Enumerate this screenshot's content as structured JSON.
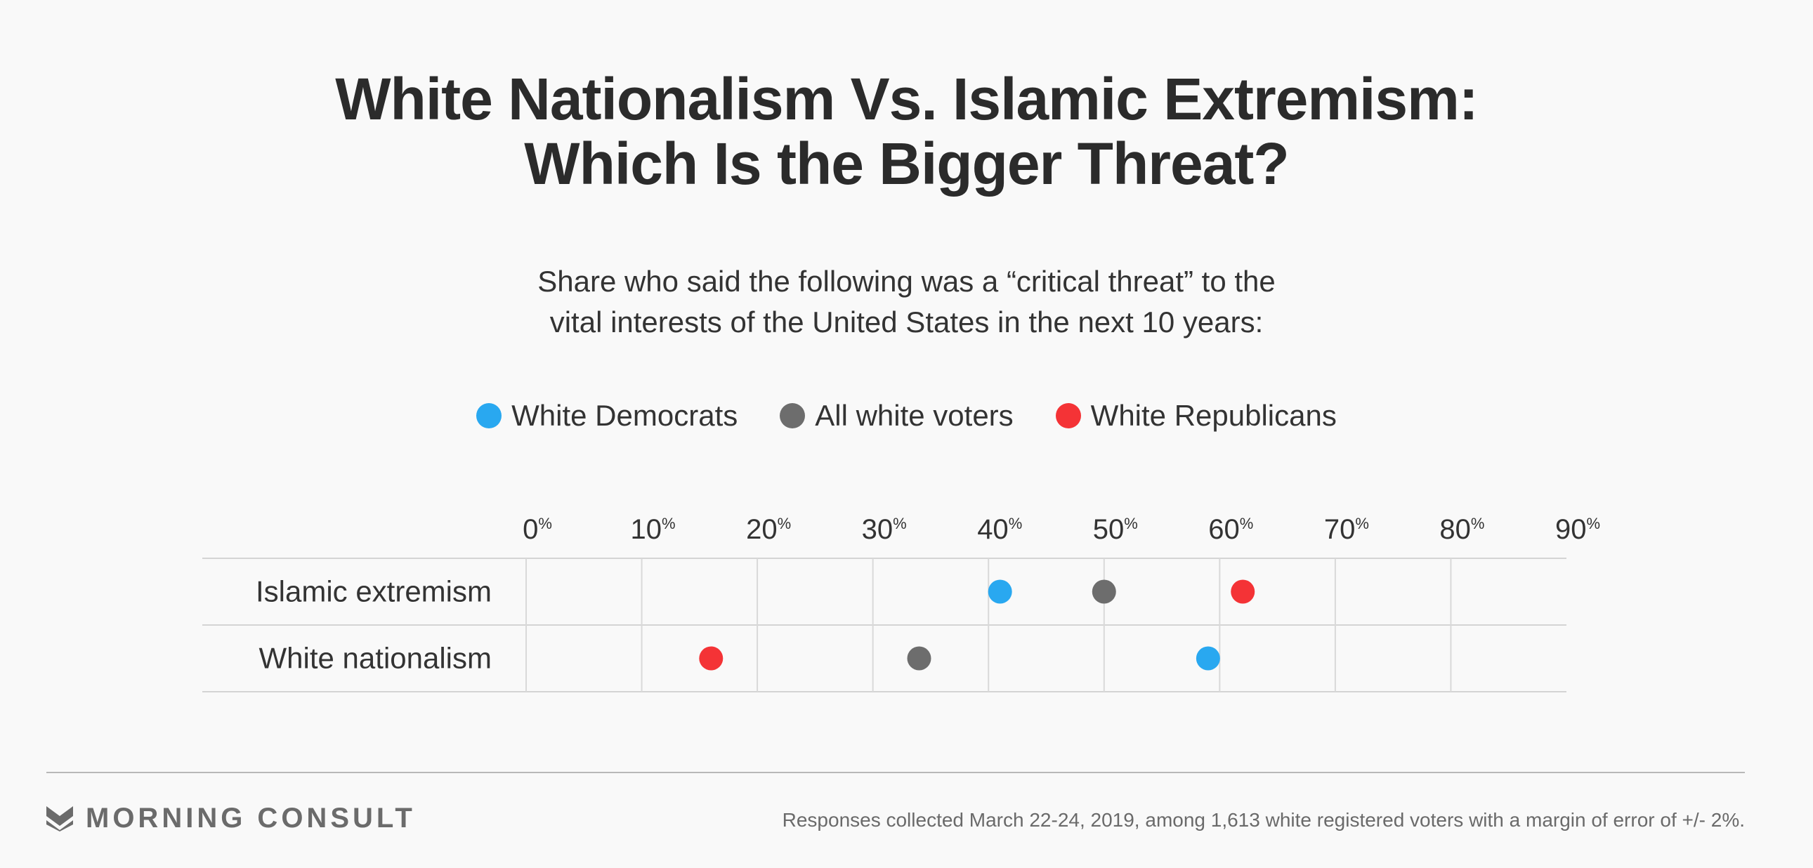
{
  "header": {
    "title_line1": "White Nationalism Vs. Islamic Extremism:",
    "title_line2": "Which Is the Bigger Threat?",
    "subtitle_line1": "Share who said the following was a “critical threat” to the",
    "subtitle_line2": "vital interests of the United States in the next 10 years:"
  },
  "legend": [
    {
      "label": "White Democrats",
      "color": "#29a8f0"
    },
    {
      "label": "All white voters",
      "color": "#6d6d6d"
    },
    {
      "label": "White Republicans",
      "color": "#f43336"
    }
  ],
  "chart_data": {
    "type": "scatter",
    "categories": [
      "Islamic extremism",
      "White nationalism"
    ],
    "series": [
      {
        "name": "White Democrats",
        "color": "#29a8f0",
        "values": [
          41,
          59
        ]
      },
      {
        "name": "All white voters",
        "color": "#6d6d6d",
        "values": [
          50,
          34
        ]
      },
      {
        "name": "White Republicans",
        "color": "#f43336",
        "values": [
          62,
          16
        ]
      }
    ],
    "x_ticks": [
      0,
      10,
      20,
      30,
      40,
      50,
      60,
      70,
      80,
      90
    ],
    "tick_suffix": "%",
    "xlim": [
      0,
      90
    ],
    "grid": true,
    "legend_position": "top-center"
  },
  "footer": {
    "brand": "MORNING CONSULT",
    "source": "Responses collected March 22-24, 2019, among 1,613 white registered voters with a margin of error of +/- 2%."
  }
}
